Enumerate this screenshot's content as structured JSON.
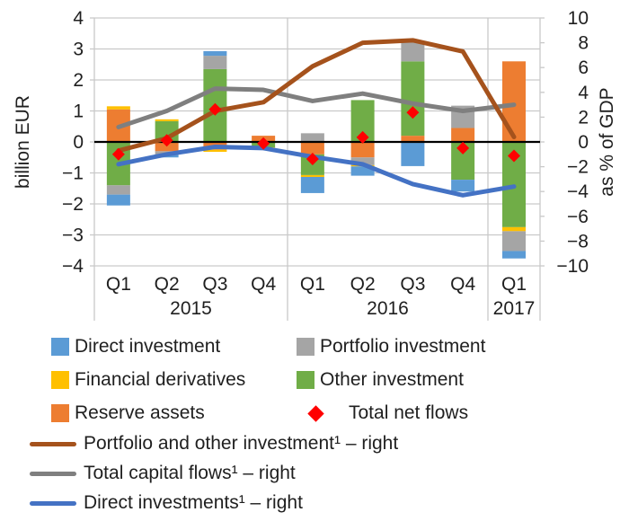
{
  "chart_data": {
    "type": "combo-stacked-bar-line-scatter",
    "left_axis": {
      "label": "billion EUR",
      "min": -4,
      "max": 4,
      "ticks": [
        4,
        3,
        2,
        1,
        0,
        -1,
        -2,
        -3,
        -4
      ]
    },
    "right_axis": {
      "label": "as % of GDP",
      "min": -10,
      "max": 10,
      "ticks": [
        10,
        8,
        6,
        4,
        2,
        0,
        -2,
        -4,
        -6,
        -8,
        -10
      ]
    },
    "x": {
      "quarters": [
        "Q1",
        "Q2",
        "Q3",
        "Q4",
        "Q1",
        "Q2",
        "Q3",
        "Q4",
        "Q1"
      ],
      "year_groups": [
        {
          "label": "2015",
          "count": 4
        },
        {
          "label": "2016",
          "count": 4
        },
        {
          "label": "2017",
          "count": 1
        }
      ]
    },
    "bar_series": [
      "Direct investment",
      "Portfolio investment",
      "Financial derivatives",
      "Other investment",
      "Reserve assets"
    ],
    "bars_axis": "left",
    "bars": [
      {
        "quarter": "Q1 2015",
        "segments": [
          {
            "series": "reserve",
            "value": 1.05
          },
          {
            "series": "fin_deriv",
            "value": 0.1
          },
          {
            "series": "other",
            "value": -1.4
          },
          {
            "series": "portfolio",
            "value": -0.3
          },
          {
            "series": "direct",
            "value": -0.35
          }
        ]
      },
      {
        "quarter": "Q2 2015",
        "segments": [
          {
            "series": "other",
            "value": 0.67
          },
          {
            "series": "fin_deriv",
            "value": 0.06
          },
          {
            "series": "reserve",
            "value": -0.3
          },
          {
            "series": "portfolio",
            "value": -0.12
          },
          {
            "series": "direct",
            "value": -0.08
          }
        ]
      },
      {
        "quarter": "Q3 2015",
        "segments": [
          {
            "series": "other",
            "value": 2.35
          },
          {
            "series": "portfolio",
            "value": 0.43
          },
          {
            "series": "direct",
            "value": 0.15
          },
          {
            "series": "reserve",
            "value": -0.25
          },
          {
            "series": "fin_deriv",
            "value": -0.07
          }
        ]
      },
      {
        "quarter": "Q4 2015",
        "segments": [
          {
            "series": "reserve",
            "value": 0.2
          },
          {
            "series": "other",
            "value": -0.18
          },
          {
            "series": "fin_deriv",
            "value": -0.07
          }
        ]
      },
      {
        "quarter": "Q1 2016",
        "segments": [
          {
            "series": "portfolio",
            "value": 0.28
          },
          {
            "series": "reserve",
            "value": -0.4
          },
          {
            "series": "other",
            "value": -0.67
          },
          {
            "series": "fin_deriv",
            "value": -0.06
          },
          {
            "series": "direct",
            "value": -0.52
          }
        ]
      },
      {
        "quarter": "Q2 2016",
        "segments": [
          {
            "series": "other",
            "value": 1.35
          },
          {
            "series": "reserve",
            "value": -0.5
          },
          {
            "series": "portfolio",
            "value": -0.25
          },
          {
            "series": "fin_deriv",
            "value": -0.04
          },
          {
            "series": "direct",
            "value": -0.3
          }
        ]
      },
      {
        "quarter": "Q3 2016",
        "segments": [
          {
            "series": "reserve",
            "value": 0.2
          },
          {
            "series": "other",
            "value": 2.4
          },
          {
            "series": "portfolio",
            "value": 0.62
          },
          {
            "series": "direct",
            "value": -0.78
          }
        ]
      },
      {
        "quarter": "Q4 2016",
        "segments": [
          {
            "series": "reserve",
            "value": 0.45
          },
          {
            "series": "portfolio",
            "value": 0.72
          },
          {
            "series": "other",
            "value": -1.22
          },
          {
            "series": "direct",
            "value": -0.38
          }
        ]
      },
      {
        "quarter": "Q1 2017",
        "segments": [
          {
            "series": "reserve",
            "value": 2.6
          },
          {
            "series": "other",
            "value": -2.75
          },
          {
            "series": "fin_deriv",
            "value": -0.13
          },
          {
            "series": "portfolio",
            "value": -0.64
          },
          {
            "series": "direct",
            "value": -0.24
          }
        ]
      }
    ],
    "total_net_flows": {
      "axis": "left",
      "marker": "diamond",
      "values": [
        -0.4,
        0.05,
        1.05,
        -0.05,
        -0.55,
        0.15,
        0.95,
        -0.2,
        -0.45
      ]
    },
    "lines": [
      {
        "name": "Portfolio and other investment¹ – right",
        "axis": "right",
        "color_key": "line_portfolio_other",
        "values": [
          -0.7,
          0.3,
          2.5,
          3.2,
          6.1,
          8.0,
          8.2,
          7.3,
          0.4
        ]
      },
      {
        "name": "Total capital flows¹ – right",
        "axis": "right",
        "color_key": "line_total",
        "values": [
          1.2,
          2.5,
          4.3,
          4.2,
          3.3,
          3.9,
          3.1,
          2.5,
          3.0
        ]
      },
      {
        "name": "Direct investments¹ – right",
        "axis": "right",
        "color_key": "line_direct",
        "values": [
          -1.8,
          -1.0,
          -0.4,
          -0.5,
          -1.2,
          -1.8,
          -3.4,
          -4.3,
          -3.6
        ]
      }
    ],
    "grid": true,
    "legend_position": "bottom"
  },
  "colors": {
    "direct": "#5B9BD5",
    "portfolio": "#A5A5A5",
    "fin_deriv": "#FFC000",
    "other": "#70AD47",
    "reserve": "#ED7D31",
    "net_flows": "#FF0000",
    "line_portfolio_other": "#A5521C",
    "line_total": "#7F7F7F",
    "line_direct": "#4472C4",
    "grid": "#C9C9C9",
    "zero_line": "#000000",
    "text": "#1f1f1f"
  },
  "legend": {
    "items": [
      {
        "label": "Direct investment",
        "swatch": "direct"
      },
      {
        "label": "Portfolio investment",
        "swatch": "portfolio"
      },
      {
        "label": "Financial derivatives",
        "swatch": "fin_deriv"
      },
      {
        "label": "Other investment",
        "swatch": "other"
      },
      {
        "label": "Reserve assets",
        "swatch": "reserve"
      },
      {
        "label": "Total net flows",
        "swatch": "net_flows"
      },
      {
        "label": "Portfolio and other investment¹ – right",
        "swatch": "line_portfolio_other"
      },
      {
        "label": "Total capital flows¹ – right",
        "swatch": "line_total"
      },
      {
        "label": "Direct investments¹ – right",
        "swatch": "line_direct"
      }
    ]
  }
}
